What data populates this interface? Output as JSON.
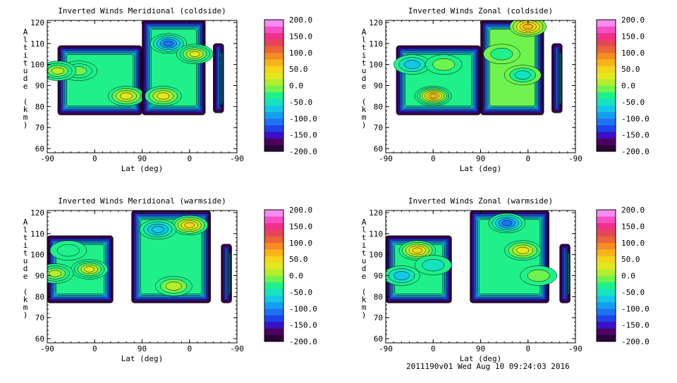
{
  "footer": {
    "text": "2011190v01 Wed Aug 10 09:24:03 2016"
  },
  "colorbar": {
    "tick_labels": [
      "200.0",
      "150.0",
      "100.0",
      "50.0",
      "0.0",
      "-50.0",
      "-100.0",
      "-150.0",
      "-200.0"
    ],
    "range": [
      -200,
      200
    ],
    "levels": 20,
    "colors": [
      "#2c0038",
      "#4b005f",
      "#3c0fc8",
      "#1b44ea",
      "#1d72f5",
      "#159ef0",
      "#14c7e4",
      "#15e3bf",
      "#1ff08a",
      "#6ef34f",
      "#b2ee2e",
      "#e3e81d",
      "#f4d51a",
      "#f7b31a",
      "#f58b22",
      "#ec6536",
      "#e8455a",
      "#f0308a",
      "#f54fc6",
      "#f58cf2"
    ]
  },
  "chart_data": [
    {
      "type": "heatmap",
      "title": "Inverted Winds Meridional (coldside)",
      "xlabel": "Lat (deg)",
      "ylabel": "Altitude (km)",
      "x_tick_labels": [
        "-90",
        "0",
        "90",
        "0",
        "-90"
      ],
      "y_tick_labels": [
        "60",
        "70",
        "80",
        "90",
        "100",
        "110",
        "120"
      ],
      "ylim": [
        58,
        121
      ],
      "regions": [
        {
          "lat": [
            -70,
            90
          ],
          "alt": [
            76,
            109
          ],
          "base_value": -40,
          "features": [
            {
              "lat": -30,
              "alt": 97,
              "value": -10
            },
            {
              "lat": 60,
              "alt": 85,
              "value": 25
            },
            {
              "lat": -70,
              "alt": 97,
              "value": 15
            }
          ]
        },
        {
          "lat": [
            90,
            -30
          ],
          "alt": [
            76,
            121
          ],
          "base_value": -40,
          "features": [
            {
              "lat": 40,
              "alt": 110,
              "value": -110
            },
            {
              "lat": -10,
              "alt": 105,
              "value": 30
            },
            {
              "lat": 50,
              "alt": 85,
              "value": 25
            }
          ]
        },
        {
          "lat": [
            -45,
            -65
          ],
          "alt": [
            77,
            110
          ],
          "base_value": -100,
          "features": []
        }
      ]
    },
    {
      "type": "heatmap",
      "title": "Inverted Winds Zonal (coldside)",
      "xlabel": "Lat (deg)",
      "ylabel": "Altitude (km)",
      "x_tick_labels": [
        "-90",
        "0",
        "90",
        "0",
        "-90"
      ],
      "y_tick_labels": [
        "60",
        "70",
        "80",
        "90",
        "100",
        "110",
        "120"
      ],
      "ylim": [
        58,
        121
      ],
      "regions": [
        {
          "lat": [
            -70,
            90
          ],
          "alt": [
            76,
            109
          ],
          "base_value": -40,
          "features": [
            {
              "lat": 0,
              "alt": 85,
              "value": 75
            },
            {
              "lat": -40,
              "alt": 100,
              "value": -70
            },
            {
              "lat": 20,
              "alt": 100,
              "value": -20
            }
          ]
        },
        {
          "lat": [
            90,
            -30
          ],
          "alt": [
            76,
            121
          ],
          "base_value": -20,
          "features": [
            {
              "lat": 0,
              "alt": 118,
              "value": 60
            },
            {
              "lat": 50,
              "alt": 105,
              "value": -30
            },
            {
              "lat": 10,
              "alt": 95,
              "value": -60
            }
          ]
        },
        {
          "lat": [
            -45,
            -65
          ],
          "alt": [
            77,
            110
          ],
          "base_value": -100,
          "features": []
        }
      ]
    },
    {
      "type": "heatmap",
      "title": "Inverted Winds Meridional (warmside)",
      "xlabel": "Lat (deg)",
      "ylabel": "Altitude (km)",
      "x_tick_labels": [
        "-90",
        "0",
        "90",
        "0",
        "-90"
      ],
      "y_tick_labels": [
        "60",
        "70",
        "80",
        "90",
        "100",
        "110",
        "120"
      ],
      "ylim": [
        58,
        121
      ],
      "regions": [
        {
          "lat": [
            -90,
            35
          ],
          "alt": [
            77,
            109
          ],
          "base_value": -40,
          "features": [
            {
              "lat": -10,
              "alt": 93,
              "value": 30
            },
            {
              "lat": -75,
              "alt": 91,
              "value": 10
            },
            {
              "lat": -50,
              "alt": 102,
              "value": -30
            }
          ]
        },
        {
          "lat": [
            110,
            -40
          ],
          "alt": [
            77,
            121
          ],
          "base_value": -30,
          "features": [
            {
              "lat": 0,
              "alt": 114,
              "value": 40
            },
            {
              "lat": 60,
              "alt": 112,
              "value": -80
            },
            {
              "lat": 30,
              "alt": 85,
              "value": 10
            }
          ]
        },
        {
          "lat": [
            -60,
            -80
          ],
          "alt": [
            77,
            105
          ],
          "base_value": -100,
          "features": []
        }
      ]
    },
    {
      "type": "heatmap",
      "title": "Inverted Winds Zonal (warmside)",
      "xlabel": "Lat (deg)",
      "ylabel": "Altitude (km)",
      "x_tick_labels": [
        "-90",
        "0",
        "90",
        "0",
        "-90"
      ],
      "y_tick_labels": [
        "60",
        "70",
        "80",
        "90",
        "100",
        "110",
        "120"
      ],
      "ylim": [
        58,
        121
      ],
      "regions": [
        {
          "lat": [
            -90,
            35
          ],
          "alt": [
            77,
            109
          ],
          "base_value": -40,
          "features": [
            {
              "lat": -30,
              "alt": 102,
              "value": 40
            },
            {
              "lat": -60,
              "alt": 90,
              "value": -80
            },
            {
              "lat": 0,
              "alt": 95,
              "value": -60
            }
          ]
        },
        {
          "lat": [
            110,
            -40
          ],
          "alt": [
            77,
            121
          ],
          "base_value": -40,
          "features": [
            {
              "lat": 40,
              "alt": 115,
              "value": -110
            },
            {
              "lat": 10,
              "alt": 102,
              "value": 20
            },
            {
              "lat": -20,
              "alt": 90,
              "value": -20
            }
          ]
        },
        {
          "lat": [
            -60,
            -80
          ],
          "alt": [
            77,
            105
          ],
          "base_value": -100,
          "features": []
        }
      ]
    }
  ]
}
